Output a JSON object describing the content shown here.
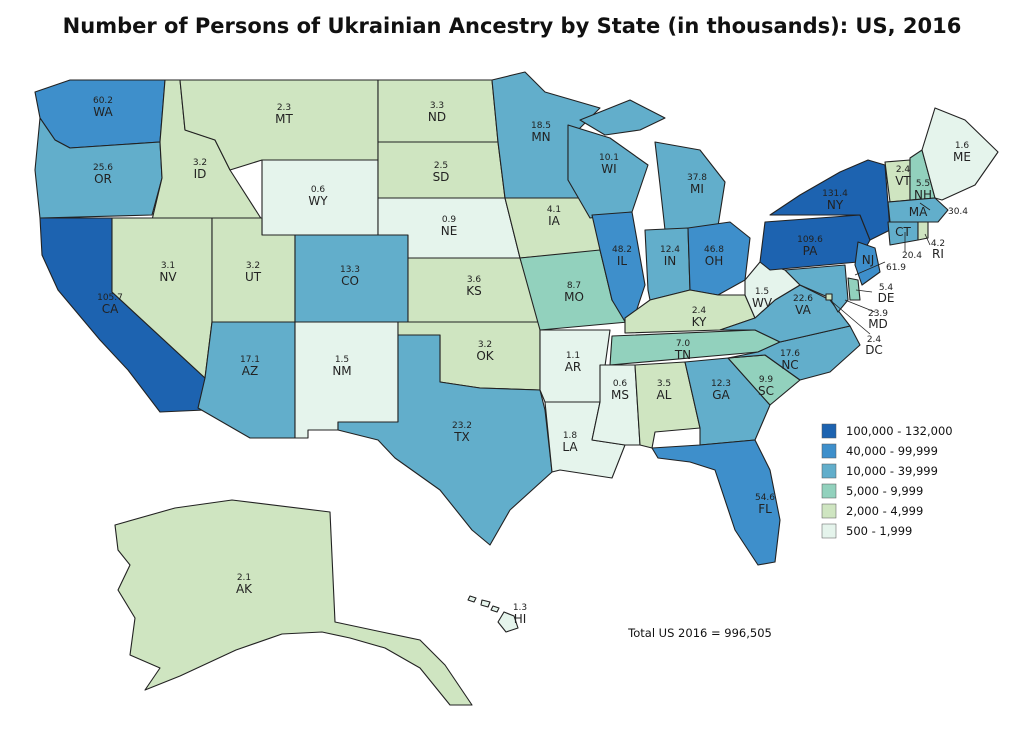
{
  "title": "Number of Persons of Ukrainian Ancestry by State (in thousands): US, 2016",
  "total": "Total US 2016 = 996,505",
  "colors": {
    "c6": "#1d63b0",
    "c5": "#3e8fcb",
    "c4": "#62aecb",
    "c3": "#92d1bd",
    "c2": "#cfe5c1",
    "c1": "#e5f4ec"
  },
  "legend": [
    {
      "key": "c6",
      "label": "100,000 - 132,000"
    },
    {
      "key": "c5",
      "label": "40,000 - 99,999"
    },
    {
      "key": "c4",
      "label": "10,000 - 39,999"
    },
    {
      "key": "c3",
      "label": "5,000 - 9,999"
    },
    {
      "key": "c2",
      "label": "2,000 - 4,999"
    },
    {
      "key": "c1",
      "label": "500 - 1,999"
    }
  ],
  "states": {
    "WA": {
      "value": "60.2",
      "abbr": "WA"
    },
    "OR": {
      "value": "25.6",
      "abbr": "OR"
    },
    "CA": {
      "value": "105.7",
      "abbr": "CA"
    },
    "ID": {
      "value": "3.2",
      "abbr": "ID"
    },
    "NV": {
      "value": "3.1",
      "abbr": "NV"
    },
    "MT": {
      "value": "2.3",
      "abbr": "MT"
    },
    "WY": {
      "value": "0.6",
      "abbr": "WY"
    },
    "UT": {
      "value": "3.2",
      "abbr": "UT"
    },
    "AZ": {
      "value": "17.1",
      "abbr": "AZ"
    },
    "CO": {
      "value": "13.3",
      "abbr": "CO"
    },
    "NM": {
      "value": "1.5",
      "abbr": "NM"
    },
    "ND": {
      "value": "3.3",
      "abbr": "ND"
    },
    "SD": {
      "value": "2.5",
      "abbr": "SD"
    },
    "NE": {
      "value": "0.9",
      "abbr": "NE"
    },
    "KS": {
      "value": "3.6",
      "abbr": "KS"
    },
    "OK": {
      "value": "3.2",
      "abbr": "OK"
    },
    "TX": {
      "value": "23.2",
      "abbr": "TX"
    },
    "MN": {
      "value": "18.5",
      "abbr": "MN"
    },
    "IA": {
      "value": "4.1",
      "abbr": "IA"
    },
    "MO": {
      "value": "8.7",
      "abbr": "MO"
    },
    "AR": {
      "value": "1.1",
      "abbr": "AR"
    },
    "LA": {
      "value": "1.8",
      "abbr": "LA"
    },
    "WI": {
      "value": "10.1",
      "abbr": "WI"
    },
    "IL": {
      "value": "48.2",
      "abbr": "IL"
    },
    "MI": {
      "value": "37.8",
      "abbr": "MI"
    },
    "IN": {
      "value": "12.4",
      "abbr": "IN"
    },
    "OH": {
      "value": "46.8",
      "abbr": "OH"
    },
    "KY": {
      "value": "2.4",
      "abbr": "KY"
    },
    "TN": {
      "value": "7.0",
      "abbr": "TN"
    },
    "MS": {
      "value": "0.6",
      "abbr": "MS"
    },
    "AL": {
      "value": "3.5",
      "abbr": "AL"
    },
    "GA": {
      "value": "12.3",
      "abbr": "GA"
    },
    "FL": {
      "value": "54.6",
      "abbr": "FL"
    },
    "SC": {
      "value": "9.9",
      "abbr": "SC"
    },
    "NC": {
      "value": "17.6",
      "abbr": "NC"
    },
    "VA": {
      "value": "22.6",
      "abbr": "VA"
    },
    "WV": {
      "value": "1.5",
      "abbr": "WV"
    },
    "PA": {
      "value": "109.6",
      "abbr": "PA"
    },
    "NY": {
      "value": "131.4",
      "abbr": "NY"
    },
    "VT": {
      "value": "2.4",
      "abbr": "VT"
    },
    "NH": {
      "value": "5.5",
      "abbr": "NH"
    },
    "ME": {
      "value": "1.6",
      "abbr": "ME"
    },
    "MA": {
      "value": "30.4",
      "abbr": "MA"
    },
    "CT": {
      "value": "20.4",
      "abbr": "CT"
    },
    "RI": {
      "value": "4.2",
      "abbr": "RI"
    },
    "NJ": {
      "value": "61.9",
      "abbr": "NJ"
    },
    "DE": {
      "value": "5.4",
      "abbr": "DE"
    },
    "MD": {
      "value": "23.9",
      "abbr": "MD"
    },
    "DC": {
      "value": "2.4",
      "abbr": "DC"
    },
    "AK": {
      "value": "2.1",
      "abbr": "AK"
    },
    "HI": {
      "value": "1.3",
      "abbr": "HI"
    }
  }
}
